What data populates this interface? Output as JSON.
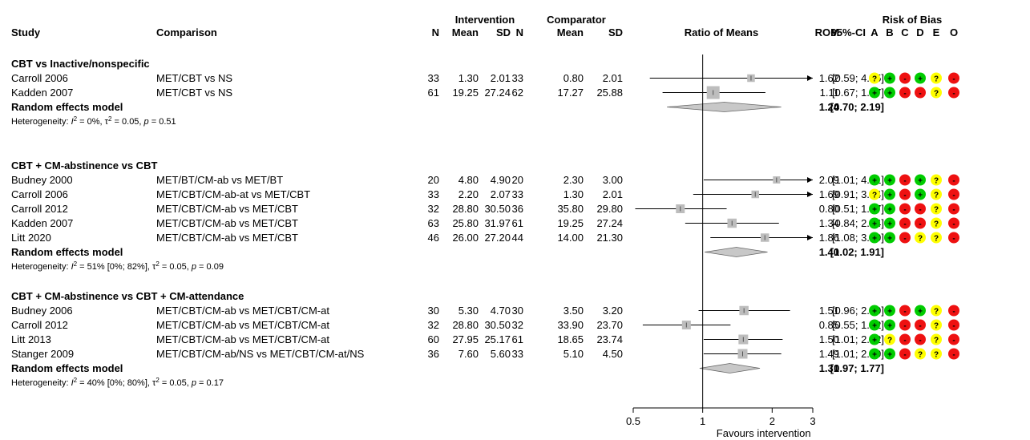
{
  "headers": {
    "study": "Study",
    "comparison": "Comparison",
    "intervention": "Intervention",
    "comparator": "Comparator",
    "n": "N",
    "mean": "Mean",
    "sd": "SD",
    "ratio_of_means": "Ratio of Means",
    "rom": "ROM",
    "ci": "95%-CI",
    "risk_of_bias": "Risk of Bias",
    "rob_domains": [
      "A",
      "B",
      "C",
      "D",
      "E",
      "O"
    ]
  },
  "rob_colors": {
    "+": "#00cc00",
    "?": "#ffff00",
    "-": "#ee1111"
  },
  "rob_symbols": {
    "+": "+",
    "?": "?",
    "-": "-"
  },
  "groups": [
    {
      "title": "CBT vs Inactive/nonspecific",
      "studies": [
        {
          "study": "Carroll 2006",
          "comparison": "MET/CBT vs NS",
          "n1": "33",
          "m1": "1.30",
          "sd1": "2.01",
          "n2": "33",
          "m2": "0.80",
          "sd2": "2.01",
          "rom": 1.62,
          "lo": 0.59,
          "hi": 4.45,
          "weight": 0.35,
          "rom_text": "1.62",
          "ci_text": "[0.59; 4.45]",
          "rob": [
            "?",
            "+",
            "-",
            "+",
            "?",
            "-"
          ]
        },
        {
          "study": "Kadden 2007",
          "comparison": "MET/CBT vs NS",
          "n1": "61",
          "m1": "19.25",
          "sd1": "27.24",
          "n2": "62",
          "m2": "17.27",
          "sd2": "25.88",
          "rom": 1.11,
          "lo": 0.67,
          "hi": 1.87,
          "weight": 1.0,
          "rom_text": "1.11",
          "ci_text": "[0.67; 1.87]",
          "rob": [
            "+",
            "+",
            "-",
            "-",
            "?",
            "-"
          ]
        }
      ],
      "pooled": {
        "label": "Random effects model",
        "rom": 1.24,
        "lo": 0.7,
        "hi": 2.19,
        "rom_text": "1.24",
        "ci_text": "[0.70; 2.19]"
      },
      "heterogeneity": {
        "prefix": "Heterogeneity: ",
        "i2": " = 0%, ",
        "tau2": " = 0.05, ",
        "p": " = 0.51"
      }
    },
    {
      "title": "CBT + CM-abstinence vs CBT",
      "studies": [
        {
          "study": "Budney 2000",
          "comparison": "MET/BT/CM-ab vs MET/BT",
          "n1": "20",
          "m1": "4.80",
          "sd1": "4.90",
          "n2": "20",
          "m2": "2.30",
          "sd2": "3.00",
          "rom": 2.09,
          "lo": 1.01,
          "hi": 4.31,
          "weight": 0.3,
          "rom_text": "2.09",
          "ci_text": "[1.01; 4.31]",
          "rob": [
            "+",
            "+",
            "-",
            "+",
            "?",
            "-"
          ]
        },
        {
          "study": "Carroll 2006",
          "comparison": "MET/CBT/CM-ab-at vs MET/CBT",
          "n1": "33",
          "m1": "2.20",
          "sd1": "2.07",
          "n2": "33",
          "m2": "1.30",
          "sd2": "2.01",
          "rom": 1.69,
          "lo": 0.91,
          "hi": 3.14,
          "weight": 0.35,
          "rom_text": "1.69",
          "ci_text": "[0.91; 3.14]",
          "rob": [
            "?",
            "+",
            "-",
            "+",
            "?",
            "-"
          ]
        },
        {
          "study": "Carroll 2012",
          "comparison": "MET/CBT/CM-ab vs MET/CBT",
          "n1": "32",
          "m1": "28.80",
          "sd1": "30.50",
          "n2": "36",
          "m2": "35.80",
          "sd2": "29.80",
          "rom": 0.8,
          "lo": 0.51,
          "hi": 1.27,
          "weight": 0.5,
          "rom_text": "0.80",
          "ci_text": "[0.51; 1.27]",
          "rob": [
            "+",
            "+",
            "-",
            "-",
            "?",
            "-"
          ]
        },
        {
          "study": "Kadden 2007",
          "comparison": "MET/CBT/CM-ab vs MET/CBT",
          "n1": "63",
          "m1": "25.80",
          "sd1": "31.97",
          "n2": "61",
          "m2": "19.25",
          "sd2": "27.24",
          "rom": 1.34,
          "lo": 0.84,
          "hi": 2.14,
          "weight": 0.55,
          "rom_text": "1.34",
          "ci_text": "[0.84; 2.14]",
          "rob": [
            "+",
            "+",
            "-",
            "-",
            "?",
            "-"
          ]
        },
        {
          "study": "Litt 2020",
          "comparison": "MET/CBT/CM-ab vs MET/CBT",
          "n1": "46",
          "m1": "26.00",
          "sd1": "27.20",
          "n2": "44",
          "m2": "14.00",
          "sd2": "21.30",
          "rom": 1.86,
          "lo": 1.08,
          "hi": 3.19,
          "weight": 0.45,
          "rom_text": "1.86",
          "ci_text": "[1.08; 3.19]",
          "rob": [
            "+",
            "+",
            "-",
            "?",
            "?",
            "-"
          ]
        }
      ],
      "pooled": {
        "label": "Random effects model",
        "rom": 1.4,
        "lo": 1.02,
        "hi": 1.91,
        "rom_text": "1.40",
        "ci_text": "[1.02; 1.91]"
      },
      "heterogeneity": {
        "prefix": "Heterogeneity: ",
        "i2": " = 51% [0%; 82%], ",
        "tau2": " = 0.05, ",
        "p": " = 0.09"
      }
    },
    {
      "title": "CBT + CM-abstinence vs CBT + CM-attendance",
      "studies": [
        {
          "study": "Budney 2006",
          "comparison": "MET/CBT/CM-ab vs MET/CBT/CM-at",
          "n1": "30",
          "m1": "5.30",
          "sd1": "4.70",
          "n2": "30",
          "m2": "3.50",
          "sd2": "3.20",
          "rom": 1.51,
          "lo": 0.96,
          "hi": 2.39,
          "weight": 0.55,
          "rom_text": "1.51",
          "ci_text": "[0.96; 2.39]",
          "rob": [
            "+",
            "+",
            "-",
            "+",
            "?",
            "-"
          ]
        },
        {
          "study": "Carroll 2012",
          "comparison": "MET/CBT/CM-ab vs MET/CBT/CM-at",
          "n1": "32",
          "m1": "28.80",
          "sd1": "30.50",
          "n2": "32",
          "m2": "33.90",
          "sd2": "23.70",
          "rom": 0.85,
          "lo": 0.55,
          "hi": 1.32,
          "weight": 0.5,
          "rom_text": "0.85",
          "ci_text": "[0.55; 1.32]",
          "rob": [
            "+",
            "+",
            "-",
            "-",
            "?",
            "-"
          ]
        },
        {
          "study": "Litt 2013",
          "comparison": "MET/CBT/CM-ab vs MET/CBT/CM-at",
          "n1": "60",
          "m1": "27.95",
          "sd1": "25.17",
          "n2": "61",
          "m2": "18.65",
          "sd2": "23.74",
          "rom": 1.5,
          "lo": 1.01,
          "hi": 2.22,
          "weight": 0.6,
          "rom_text": "1.50",
          "ci_text": "[1.01; 2.22]",
          "rob": [
            "+",
            "?",
            "-",
            "-",
            "?",
            "-"
          ]
        },
        {
          "study": "Stanger 2009",
          "comparison": "MET/CBT/CM-ab/NS vs MET/CBT/CM-at/NS",
          "n1": "36",
          "m1": "7.60",
          "sd1": "5.60",
          "n2": "33",
          "m2": "5.10",
          "sd2": "4.50",
          "rom": 1.49,
          "lo": 1.01,
          "hi": 2.19,
          "weight": 0.6,
          "rom_text": "1.49",
          "ci_text": "[1.01; 2.19]",
          "rob": [
            "+",
            "+",
            "-",
            "?",
            "?",
            "-"
          ]
        }
      ],
      "pooled": {
        "label": "Random effects model",
        "rom": 1.31,
        "lo": 0.97,
        "hi": 1.77,
        "rom_text": "1.31",
        "ci_text": "[0.97; 1.77]"
      },
      "heterogeneity": {
        "prefix": "Heterogeneity: ",
        "i2": " = 40% [0%; 80%], ",
        "tau2": " = 0.05, ",
        "p": " = 0.17"
      }
    }
  ],
  "axis": {
    "ticks": [
      0.5,
      1,
      2,
      3
    ],
    "tick_labels": [
      "0.5",
      "1",
      "2",
      "3"
    ],
    "label": "Favours intervention",
    "range": [
      0.5,
      3
    ],
    "scale": "log",
    "null_value": 1
  },
  "chart_data": {
    "type": "forest",
    "xlabel": "Favours intervention",
    "xscale": "log",
    "xlim": [
      0.5,
      3
    ],
    "studies": [
      {
        "group": "CBT vs Inactive/nonspecific",
        "study": "Carroll 2006",
        "rom": 1.62,
        "ci": [
          0.59,
          4.45
        ]
      },
      {
        "group": "CBT vs Inactive/nonspecific",
        "study": "Kadden 2007",
        "rom": 1.11,
        "ci": [
          0.67,
          1.87
        ]
      },
      {
        "group": "CBT + CM-abstinence vs CBT",
        "study": "Budney 2000",
        "rom": 2.09,
        "ci": [
          1.01,
          4.31
        ]
      },
      {
        "group": "CBT + CM-abstinence vs CBT",
        "study": "Carroll 2006",
        "rom": 1.69,
        "ci": [
          0.91,
          3.14
        ]
      },
      {
        "group": "CBT + CM-abstinence vs CBT",
        "study": "Carroll 2012",
        "rom": 0.8,
        "ci": [
          0.51,
          1.27
        ]
      },
      {
        "group": "CBT + CM-abstinence vs CBT",
        "study": "Kadden 2007",
        "rom": 1.34,
        "ci": [
          0.84,
          2.14
        ]
      },
      {
        "group": "CBT + CM-abstinence vs CBT",
        "study": "Litt 2020",
        "rom": 1.86,
        "ci": [
          1.08,
          3.19
        ]
      },
      {
        "group": "CBT + CM-abstinence vs CBT + CM-attendance",
        "study": "Budney 2006",
        "rom": 1.51,
        "ci": [
          0.96,
          2.39
        ]
      },
      {
        "group": "CBT + CM-abstinence vs CBT + CM-attendance",
        "study": "Carroll 2012",
        "rom": 0.85,
        "ci": [
          0.55,
          1.32
        ]
      },
      {
        "group": "CBT + CM-abstinence vs CBT + CM-attendance",
        "study": "Litt 2013",
        "rom": 1.5,
        "ci": [
          1.01,
          2.22
        ]
      },
      {
        "group": "CBT + CM-abstinence vs CBT + CM-attendance",
        "study": "Stanger 2009",
        "rom": 1.49,
        "ci": [
          1.01,
          2.19
        ]
      }
    ],
    "pooled": [
      {
        "group": "CBT vs Inactive/nonspecific",
        "rom": 1.24,
        "ci": [
          0.7,
          2.19
        ]
      },
      {
        "group": "CBT + CM-abstinence vs CBT",
        "rom": 1.4,
        "ci": [
          1.02,
          1.91
        ]
      },
      {
        "group": "CBT + CM-abstinence vs CBT + CM-attendance",
        "rom": 1.31,
        "ci": [
          0.97,
          1.77
        ]
      }
    ]
  }
}
